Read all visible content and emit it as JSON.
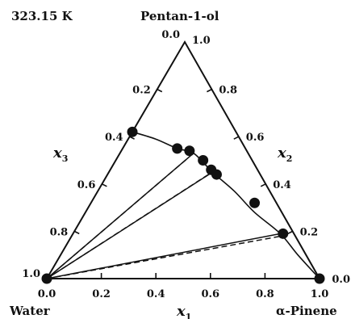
{
  "chart_data": {
    "type": "ternary",
    "title": "323.15 K",
    "vertices": {
      "top": "Pentan-1-ol",
      "left": "Water",
      "right": "α-Pinene"
    },
    "axes": {
      "x1": {
        "symbol": "x",
        "subscript": "1",
        "ticks": [
          "0.0",
          "0.2",
          "0.4",
          "0.6",
          "0.8",
          "1.0"
        ]
      },
      "x2": {
        "symbol": "x",
        "subscript": "2",
        "ticks": [
          "0.0",
          "0.2",
          "0.4",
          "0.6",
          "0.8",
          "1.0"
        ]
      },
      "x3": {
        "symbol": "x",
        "subscript": "3",
        "ticks": [
          "1.0",
          "0.8",
          "0.6",
          "0.4",
          "0.2",
          "0.0"
        ]
      }
    },
    "experimental_points": [
      {
        "x1": 0.0,
        "x2": 0.62,
        "x3": 0.38
      },
      {
        "x1": 0.2,
        "x2": 0.55,
        "x3": 0.25
      },
      {
        "x1": 0.25,
        "x2": 0.54,
        "x3": 0.21
      },
      {
        "x1": 0.32,
        "x2": 0.5,
        "x3": 0.18
      },
      {
        "x1": 0.37,
        "x2": 0.46,
        "x3": 0.17
      },
      {
        "x1": 0.4,
        "x2": 0.44,
        "x3": 0.16
      },
      {
        "x1": 0.6,
        "x2": 0.32,
        "x3": 0.08
      },
      {
        "x1": 0.77,
        "x2": 0.19,
        "x3": 0.04
      },
      {
        "x1": 1.0,
        "x2": 0.0,
        "x3": 0.0
      }
    ],
    "binodal_curve": [
      {
        "x1": 0.0,
        "x2": 0.62,
        "x3": 0.38
      },
      {
        "x1": 0.1,
        "x2": 0.59,
        "x3": 0.31
      },
      {
        "x1": 0.2,
        "x2": 0.55,
        "x3": 0.25
      },
      {
        "x1": 0.27,
        "x2": 0.53,
        "x3": 0.2
      },
      {
        "x1": 0.38,
        "x2": 0.45,
        "x3": 0.17
      },
      {
        "x1": 0.5,
        "x2": 0.37,
        "x3": 0.13
      },
      {
        "x1": 0.62,
        "x2": 0.28,
        "x3": 0.1
      },
      {
        "x1": 0.76,
        "x2": 0.19,
        "x3": 0.05
      },
      {
        "x1": 0.87,
        "x2": 0.1,
        "x3": 0.03
      },
      {
        "x1": 1.0,
        "x2": 0.0,
        "x3": 0.0
      }
    ],
    "tie_lines_experimental": [
      {
        "from": {
          "x1": 0.0,
          "x2": 0.0,
          "x3": 1.0
        },
        "to": {
          "x1": 0.27,
          "x2": 0.53,
          "x3": 0.2
        }
      },
      {
        "from": {
          "x1": 0.0,
          "x2": 0.0,
          "x3": 1.0
        },
        "to": {
          "x1": 0.38,
          "x2": 0.45,
          "x3": 0.17
        }
      },
      {
        "from": {
          "x1": 0.0,
          "x2": 0.0,
          "x3": 1.0
        },
        "to": {
          "x1": 0.76,
          "x2": 0.19,
          "x3": 0.05
        }
      }
    ],
    "tie_lines_calculated": [
      {
        "from": {
          "x1": 0.0,
          "x2": 0.0,
          "x3": 1.0
        },
        "to": {
          "x1": 0.26,
          "x2": 0.51,
          "x3": 0.23
        }
      },
      {
        "from": {
          "x1": 0.0,
          "x2": 0.0,
          "x3": 1.0
        },
        "to": {
          "x1": 0.37,
          "x2": 0.44,
          "x3": 0.19
        }
      },
      {
        "from": {
          "x1": 0.0,
          "x2": 0.0,
          "x3": 1.0
        },
        "to": {
          "x1": 0.77,
          "x2": 0.18,
          "x3": 0.05
        }
      }
    ],
    "colors": {
      "line": "#111111",
      "marker": "#111111",
      "background": "#ffffff"
    }
  }
}
